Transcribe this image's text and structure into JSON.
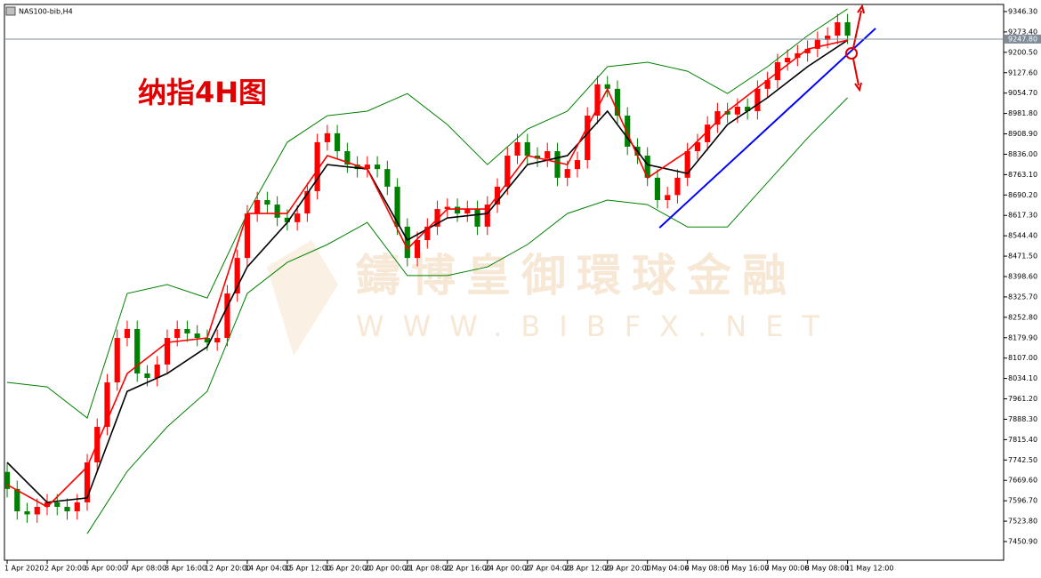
{
  "chart_data": {
    "type": "candlestick",
    "symbol": "NAS100-bib,H4",
    "annotation": "纳指4H图",
    "watermark": [
      "鑄博皇御環球金融",
      "WWW.BIBFX.NET"
    ],
    "xlim": [
      -0.27,
      99.6
    ],
    "ylim": [
      7384.1,
      9371.7
    ],
    "xticks": [
      {
        "value": 0,
        "label": "1 Apr 2020"
      },
      {
        "value": 4,
        "label": "2 Apr 20:00"
      },
      {
        "value": 8,
        "label": "6 Apr 00:00"
      },
      {
        "value": 12,
        "label": "7 Apr 08:00"
      },
      {
        "value": 16,
        "label": "8 Apr 16:00"
      },
      {
        "value": 20,
        "label": "12 Apr 20:00"
      },
      {
        "value": 24,
        "label": "14 Apr 04:00"
      },
      {
        "value": 28,
        "label": "15 Apr 12:00"
      },
      {
        "value": 32,
        "label": "16 Apr 20:00"
      },
      {
        "value": 36,
        "label": "20 Apr 00:00"
      },
      {
        "value": 40,
        "label": "21 Apr 08:00"
      },
      {
        "value": 44,
        "label": "22 Apr 16:00"
      },
      {
        "value": 48,
        "label": "24 Apr 00:00"
      },
      {
        "value": 52,
        "label": "27 Apr 04:00"
      },
      {
        "value": 56,
        "label": "28 Apr 12:00"
      },
      {
        "value": 60,
        "label": "29 Apr 20:00"
      },
      {
        "value": 64,
        "label": "1 May 04:00"
      },
      {
        "value": 68,
        "label": "4 May 08:00"
      },
      {
        "value": 72,
        "label": "5 May 16:00"
      },
      {
        "value": 76,
        "label": "7 May 00:00"
      },
      {
        "value": 80,
        "label": "8 May 08:00"
      },
      {
        "value": 84,
        "label": "11 May 12:00"
      }
    ],
    "yticks": [
      {
        "value": 9346.3,
        "label": "9346.30"
      },
      {
        "value": 9273.4,
        "label": "9273.40"
      },
      {
        "value": 9200.5,
        "label": "9200.50"
      },
      {
        "value": 9127.6,
        "label": "9127.60"
      },
      {
        "value": 9054.7,
        "label": "9054.70"
      },
      {
        "value": 8981.8,
        "label": "8981.80"
      },
      {
        "value": 8908.9,
        "label": "8908.90"
      },
      {
        "value": 8836,
        "label": "8836.00"
      },
      {
        "value": 8763.1,
        "label": "8763.10"
      },
      {
        "value": 8690.2,
        "label": "8690.20"
      },
      {
        "value": 8617.3,
        "label": "8617.30"
      },
      {
        "value": 8544.4,
        "label": "8544.40"
      },
      {
        "value": 8471.5,
        "label": "8471.50"
      },
      {
        "value": 8398.6,
        "label": "8398.60"
      },
      {
        "value": 8325.7,
        "label": "8325.70"
      },
      {
        "value": 8252.8,
        "label": "8252.80"
      },
      {
        "value": 8179.9,
        "label": "8179.90"
      },
      {
        "value": 8107,
        "label": "8107.00"
      },
      {
        "value": 8034.1,
        "label": "8034.10"
      },
      {
        "value": 7961.2,
        "label": "7961.20"
      },
      {
        "value": 7888.3,
        "label": "7888.30"
      },
      {
        "value": 7815.4,
        "label": "7815.40"
      },
      {
        "value": 7742.5,
        "label": "7742.50"
      },
      {
        "value": 7669.6,
        "label": "7669.60"
      },
      {
        "value": 7596.7,
        "label": "7596.70"
      },
      {
        "value": 7523.8,
        "label": "7523.80"
      },
      {
        "value": 7450.9,
        "label": "7450.90"
      }
    ],
    "up_color": "#ff0000",
    "down_color": "#008000",
    "open": [
      7700,
      7639,
      7559,
      7548,
      7575,
      7591,
      7575,
      7559,
      7591,
      7734,
      7861,
      8020,
      8179,
      8211,
      8052,
      8036,
      8084,
      8179,
      8211,
      8195,
      8179,
      8163,
      8179,
      8338,
      8465,
      8624,
      8672,
      8656,
      8609,
      8593,
      8624,
      8704,
      8879,
      8911,
      8847,
      8799,
      8783,
      8799,
      8783,
      8720,
      8577,
      8465,
      8529,
      8577,
      8640,
      8648,
      8624,
      8640,
      8577,
      8656,
      8720,
      8831,
      8879,
      8831,
      8820,
      8847,
      8752,
      8783,
      8815,
      8974,
      9086,
      9070,
      8974,
      8863,
      8831,
      8752,
      8672,
      8690,
      8752,
      8847,
      8879,
      8942,
      8990,
      8978,
      9006,
      8990,
      9070,
      9101,
      9165,
      9181,
      9197,
      9213,
      9245,
      9260,
      9308
    ],
    "high": [
      7730,
      7669,
      7589,
      7605,
      7621,
      7621,
      7605,
      7621,
      7764,
      7891,
      8050,
      8209,
      8241,
      8241,
      8082,
      8114,
      8209,
      8241,
      8241,
      8225,
      8209,
      8209,
      8368,
      8495,
      8654,
      8702,
      8702,
      8686,
      8639,
      8654,
      8734,
      8909,
      8941,
      8941,
      8877,
      8829,
      8829,
      8829,
      8813,
      8750,
      8607,
      8559,
      8607,
      8670,
      8678,
      8678,
      8670,
      8670,
      8686,
      8750,
      8861,
      8909,
      8909,
      8861,
      8877,
      8877,
      8813,
      8845,
      9004,
      9116,
      9116,
      9100,
      9004,
      8893,
      8861,
      8782,
      8720,
      8782,
      8877,
      8909,
      8972,
      9020,
      9020,
      9036,
      9036,
      9100,
      9131,
      9195,
      9211,
      9227,
      9243,
      9275,
      9290,
      9338,
      9338
    ],
    "low": [
      7609,
      7529,
      7518,
      7518,
      7545,
      7545,
      7529,
      7529,
      7561,
      7704,
      7831,
      7990,
      8149,
      8022,
      8006,
      8006,
      8054,
      8149,
      8165,
      8149,
      8133,
      8133,
      8149,
      8308,
      8435,
      8594,
      8626,
      8579,
      8563,
      8563,
      8594,
      8674,
      8849,
      8817,
      8769,
      8753,
      8753,
      8753,
      8690,
      8547,
      8435,
      8435,
      8499,
      8547,
      8610,
      8594,
      8594,
      8547,
      8547,
      8626,
      8690,
      8801,
      8801,
      8790,
      8790,
      8722,
      8722,
      8753,
      8785,
      8944,
      9040,
      8944,
      8833,
      8801,
      8722,
      8642,
      8642,
      8660,
      8722,
      8817,
      8849,
      8912,
      8948,
      8948,
      8960,
      8960,
      9040,
      9071,
      9135,
      9151,
      9167,
      9183,
      9215,
      9230,
      9230
    ],
    "close": [
      7639,
      7559,
      7548,
      7575,
      7591,
      7575,
      7559,
      7591,
      7734,
      7861,
      8020,
      8179,
      8211,
      8052,
      8036,
      8084,
      8179,
      8211,
      8195,
      8179,
      8163,
      8179,
      8338,
      8465,
      8624,
      8672,
      8656,
      8609,
      8593,
      8624,
      8704,
      8879,
      8911,
      8847,
      8799,
      8783,
      8799,
      8783,
      8720,
      8577,
      8465,
      8529,
      8577,
      8640,
      8648,
      8624,
      8640,
      8577,
      8656,
      8720,
      8831,
      8879,
      8831,
      8820,
      8847,
      8752,
      8783,
      8815,
      8974,
      9086,
      9070,
      8974,
      8863,
      8831,
      8752,
      8672,
      8690,
      8752,
      8847,
      8879,
      8942,
      8990,
      8978,
      9006,
      8990,
      9070,
      9101,
      9165,
      9181,
      9197,
      9213,
      9245,
      9260,
      9308,
      9260
    ],
    "lines": [
      {
        "color": "#000000",
        "x": [
          0,
          4,
          8,
          12,
          16,
          20,
          24,
          28,
          32,
          36,
          40,
          44,
          48,
          52,
          56,
          60,
          64,
          68,
          72,
          76,
          80,
          84
        ],
        "values": [
          7734,
          7591,
          7607,
          7988,
          8052,
          8147,
          8433,
          8592,
          8799,
          8783,
          8529,
          8608,
          8624,
          8799,
          8831,
          8990,
          8799,
          8767,
          8942,
          9038,
          9149,
          9244
        ]
      },
      {
        "color": "#008000",
        "x": [
          0,
          4,
          8,
          12,
          16,
          20,
          24,
          28,
          32,
          36,
          40,
          44,
          48,
          52,
          56,
          60,
          64,
          68,
          72,
          76,
          80,
          84
        ],
        "values": [
          8020,
          8004,
          7893,
          8338,
          8370,
          8322,
          8624,
          8879,
          8974,
          8990,
          9053,
          8942,
          8799,
          8926,
          8990,
          9149,
          9165,
          9133,
          9053,
          9149,
          9260,
          9356
        ]
      },
      {
        "color": "#008000",
        "x": [
          0,
          4,
          8,
          12,
          16,
          20,
          24,
          28,
          32,
          36,
          40,
          44,
          48,
          52,
          56,
          60,
          64,
          68,
          72,
          76,
          80,
          84
        ],
        "values": [
          null,
          null,
          7479,
          7702,
          7861,
          7988,
          8338,
          8449,
          8513,
          8592,
          8402,
          8402,
          8433,
          8513,
          8624,
          8672,
          8656,
          8576,
          8576,
          8735,
          8894,
          9038
        ]
      },
      {
        "color": "#ff0000",
        "x": [
          0,
          4,
          8,
          12,
          16,
          20,
          24,
          28,
          32,
          36,
          40,
          44,
          48,
          52,
          56,
          60,
          64,
          68,
          72,
          76,
          80,
          84
        ],
        "values": [
          7654,
          7575,
          7718,
          8052,
          8163,
          8179,
          8624,
          8624,
          8831,
          8783,
          8497,
          8640,
          8640,
          8831,
          8799,
          9069,
          8751,
          8847,
          8990,
          9101,
          9212,
          9244
        ]
      }
    ],
    "trendline": {
      "color": "#0000ff",
      "x": [
        65.2,
        86.8
      ],
      "values": [
        8573,
        9286
      ]
    },
    "current_price": {
      "value": 9247.8,
      "label": "9247.80"
    }
  }
}
